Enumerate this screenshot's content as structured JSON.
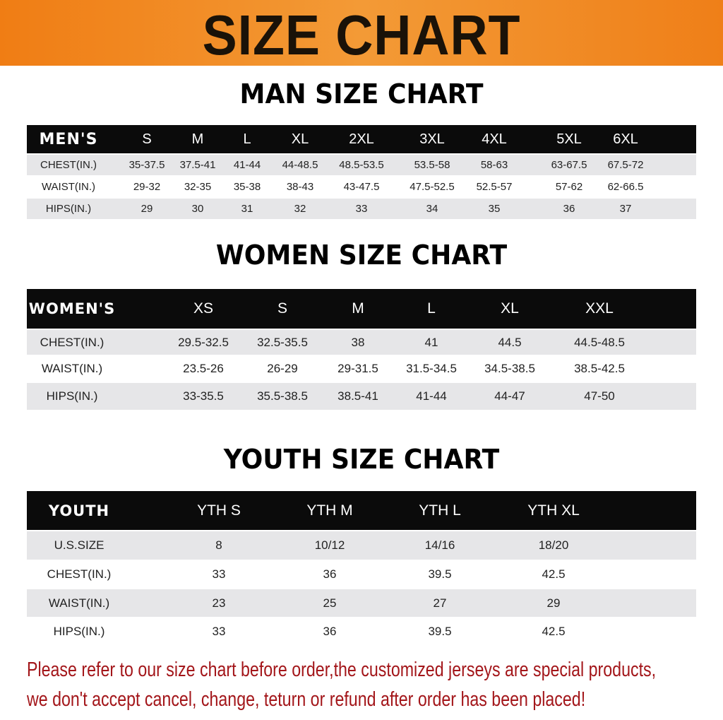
{
  "banner": {
    "title": "SIZE CHART",
    "color": "#f08a24"
  },
  "men": {
    "title": "MAN SIZE CHART",
    "header": [
      "MEN'S",
      "S",
      "M",
      "L",
      "XL",
      "2XL",
      "3XL",
      "4XL",
      "5XL",
      "6XL"
    ],
    "rows": [
      [
        "CHEST(IN.)",
        "35-37.5",
        "37.5-41",
        "41-44",
        "44-48.5",
        "48.5-53.5",
        "53.5-58",
        "58-63",
        "63-67.5",
        "67.5-72"
      ],
      [
        "WAIST(IN.)",
        "29-32",
        "32-35",
        "35-38",
        "38-43",
        "43-47.5",
        "47.5-52.5",
        "52.5-57",
        "57-62",
        "62-66.5"
      ],
      [
        "HIPS(IN.)",
        "29",
        "30",
        "31",
        "32",
        "33",
        "34",
        "35",
        "36",
        "37"
      ]
    ]
  },
  "women": {
    "title": "WOMEN SIZE CHART",
    "header": [
      "WOMEN'S",
      "XS",
      "S",
      "M",
      "L",
      "XL",
      "XXL"
    ],
    "rows": [
      [
        "CHEST(IN.)",
        "29.5-32.5",
        "32.5-35.5",
        "38",
        "41",
        "44.5",
        "44.5-48.5"
      ],
      [
        "WAIST(IN.)",
        "23.5-26",
        "26-29",
        "29-31.5",
        "31.5-34.5",
        "34.5-38.5",
        "38.5-42.5"
      ],
      [
        "HIPS(IN.)",
        "33-35.5",
        "35.5-38.5",
        "38.5-41",
        "41-44",
        "44-47",
        "47-50"
      ]
    ]
  },
  "youth": {
    "title": "YOUTH SIZE CHART",
    "header": [
      "YOUTH",
      "YTH S",
      "YTH M",
      "YTH L",
      "YTH XL"
    ],
    "rows": [
      [
        "U.S.SIZE",
        "8",
        "10/12",
        "14/16",
        "18/20"
      ],
      [
        "CHEST(IN.)",
        "33",
        "36",
        "39.5",
        "42.5"
      ],
      [
        "WAIST(IN.)",
        "23",
        "25",
        "27",
        "29"
      ],
      [
        "HIPS(IN.)",
        "33",
        "36",
        "39.5",
        "42.5"
      ]
    ]
  },
  "notice": {
    "line1": "Please refer to our size chart before order,the customized jerseys are special products,",
    "line2": "we don't accept cancel, change, teturn or refund after order has been placed!",
    "color": "#a3161a"
  }
}
